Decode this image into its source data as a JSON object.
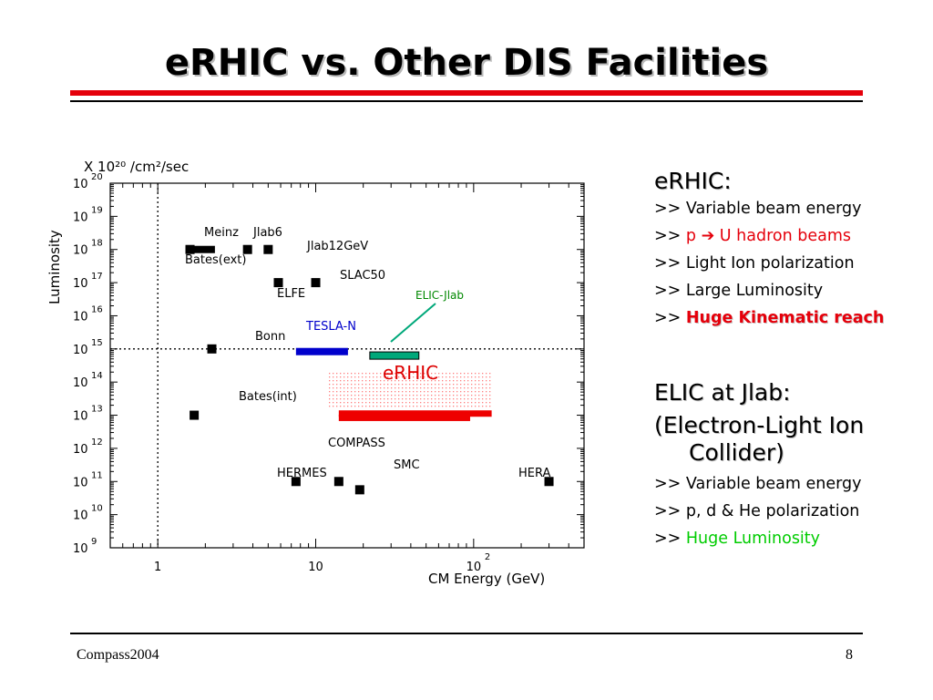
{
  "slide": {
    "title": "eRHIC vs. Other DIS Facilities",
    "footer_left": "Compass2004",
    "page_number": "8",
    "accent_red": "#e5000b"
  },
  "chart_data": {
    "type": "scatter",
    "y_unit": "X 10²⁰ /cm²/sec",
    "ylabel": "Luminosity",
    "xlabel": "CM Energy (GeV)",
    "x_scale": "log",
    "y_scale": "log",
    "xlim": [
      0.5,
      500
    ],
    "ylim": [
      1000000000.0,
      1e+20
    ],
    "x_ticks": [
      {
        "value": 1,
        "label": "1"
      },
      {
        "value": 10,
        "label": "10"
      },
      {
        "value": 100,
        "label": "10",
        "sup": "2"
      }
    ],
    "y_ticks": [
      {
        "exp": 20,
        "base": "10",
        "sup": "20"
      },
      {
        "exp": 19,
        "base": "10",
        "sup": "19"
      },
      {
        "exp": 18,
        "base": "10",
        "sup": "18"
      },
      {
        "exp": 17,
        "base": "10",
        "sup": "17"
      },
      {
        "exp": 16,
        "base": "10",
        "sup": "16"
      },
      {
        "exp": 15,
        "base": "10",
        "sup": "15"
      },
      {
        "exp": 14,
        "base": "10",
        "sup": "14"
      },
      {
        "exp": 13,
        "base": "10",
        "sup": "13"
      },
      {
        "exp": 12,
        "base": "10",
        "sup": "12"
      },
      {
        "exp": 11,
        "base": "10",
        "sup": "11"
      },
      {
        "exp": 10,
        "base": "10",
        "sup": "10"
      },
      {
        "exp": 9,
        "base": "10",
        "sup": "9"
      }
    ],
    "guide_lines": {
      "x": 1,
      "y_exp": 15
    },
    "points": [
      {
        "name": "Meinz",
        "x": 1.6,
        "y_exp": 18
      },
      {
        "name": "Jlab6",
        "x": 3.7,
        "y_exp": 18
      },
      {
        "name": "Jlab12GeV",
        "x": 5.0,
        "y_exp": 18
      },
      {
        "name": "SLAC50",
        "x": 10.0,
        "y_exp": 17
      },
      {
        "name": "ELFE",
        "x": 5.8,
        "y_exp": 17
      },
      {
        "name": "Bonn",
        "x": 2.2,
        "y_exp": 15
      },
      {
        "name": "Bates(int)",
        "x": 1.7,
        "y_exp": 13
      },
      {
        "name": "HERMES",
        "x": 7.5,
        "y_exp": 11
      },
      {
        "name": "COMPASS",
        "x": 14.0,
        "y_exp": 11
      },
      {
        "name": "SMC",
        "x": 19.0,
        "y_exp": 10.75
      },
      {
        "name": "HERA",
        "x": 300.0,
        "y_exp": 11
      }
    ],
    "ranges": [
      {
        "name": "Meinz / Bates(ext)",
        "x": [
          1.5,
          2.3
        ],
        "y_exp": 18,
        "color": "#000000"
      },
      {
        "name": "TESLA-N",
        "x": [
          7.5,
          16.0
        ],
        "y_exp": 14.92,
        "color": "#0000cc"
      },
      {
        "name": "ELIC-Jlab",
        "x": [
          22.0,
          45.0
        ],
        "y_exp": 14.8,
        "color": "#00a87a"
      },
      {
        "name": "eRHIC",
        "x": [
          14.0,
          130.0
        ],
        "y_exp": 13.05,
        "color": "#ee0000"
      },
      {
        "name": "eRHIC",
        "x": [
          14.0,
          95.0
        ],
        "y_exp": 12.92,
        "color": "#ee0000"
      }
    ],
    "region": {
      "name": "eRHIC",
      "x": [
        12.0,
        130.0
      ],
      "y_exp": [
        13.2,
        14.3
      ],
      "color": "#ff8080"
    },
    "labels": [
      {
        "text": "Meinz",
        "color": "#000000"
      },
      {
        "text": "Jlab6",
        "color": "#000000"
      },
      {
        "text": "Bates(ext)",
        "color": "#000000"
      },
      {
        "text": "Jlab12GeV",
        "color": "#000000"
      },
      {
        "text": "SLAC50",
        "color": "#000000"
      },
      {
        "text": "ELFE",
        "color": "#000000"
      },
      {
        "text": "Bonn",
        "color": "#000000"
      },
      {
        "text": "Bates(int)",
        "color": "#000000"
      },
      {
        "text": "COMPASS",
        "color": "#000000"
      },
      {
        "text": "HERMES",
        "color": "#000000"
      },
      {
        "text": "SMC",
        "color": "#000000"
      },
      {
        "text": "HERA",
        "color": "#000000"
      },
      {
        "text": "TESLA-N",
        "color": "#0000cc"
      },
      {
        "text": "ELIC-Jlab",
        "color": "#008800"
      },
      {
        "text": "eRHIC",
        "color": "#dd0000"
      }
    ]
  },
  "side": {
    "erhic_heading": "eRHIC:",
    "erhic_items": [
      {
        "prefix": ">> ",
        "text": "Variable beam energy"
      },
      {
        "prefix": ">> ",
        "red": "p ",
        "arrow": "➔",
        "red2": " U hadron beams"
      },
      {
        "prefix": ">> ",
        "text": "Light Ion  polarization"
      },
      {
        "prefix": ">> ",
        "text": "Large Luminosity"
      },
      {
        "prefix": ">> ",
        "redbold": "Huge Kinematic reach"
      }
    ],
    "elic_heading_1": "ELIC at Jlab:",
    "elic_heading_2": "(Electron-Light Ion",
    "elic_heading_3": "Collider)",
    "elic_items": [
      {
        "prefix": ">> ",
        "text": "Variable beam energy"
      },
      {
        "prefix": ">> ",
        "text": "p, d & He polarization"
      },
      {
        "prefix": ">> ",
        "green": "Huge Luminosity"
      }
    ]
  }
}
